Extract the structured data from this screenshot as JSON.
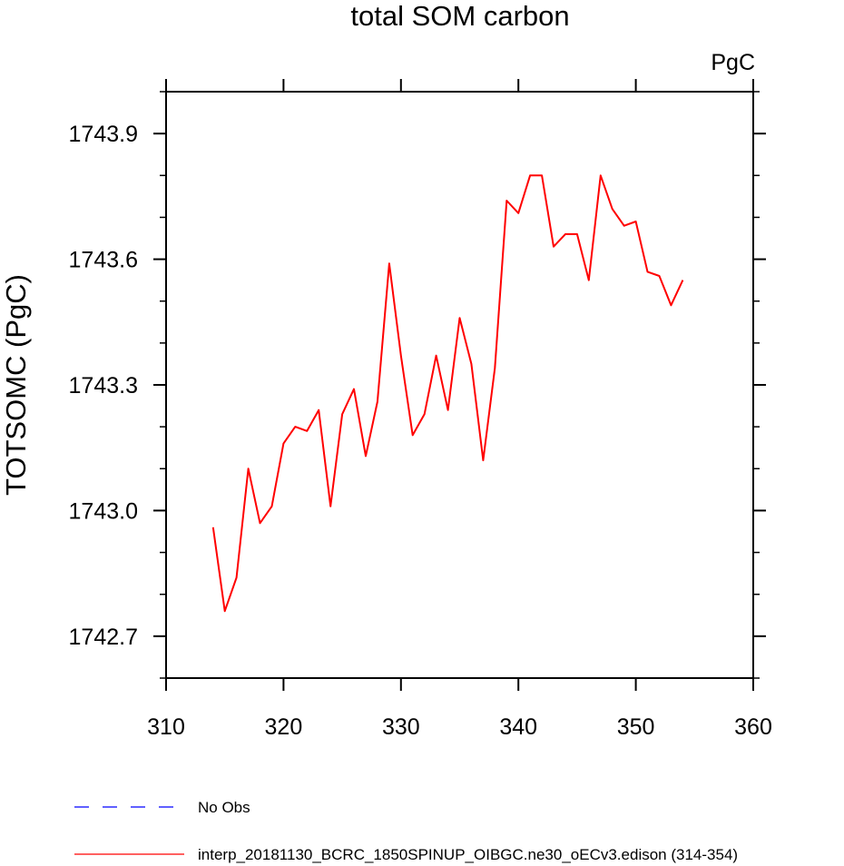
{
  "chart_data": {
    "type": "line",
    "title": "total SOM carbon",
    "units": "PgC",
    "xlabel": "",
    "ylabel": "TOTSOMC  (PgC)",
    "xlim": [
      310,
      360
    ],
    "ylim": [
      1742.6,
      1744.0
    ],
    "x_ticks": [
      310,
      320,
      330,
      340,
      350,
      360
    ],
    "y_ticks": [
      1742.7,
      1743.0,
      1743.3,
      1743.6,
      1743.9
    ],
    "x_tick_labels": [
      "310",
      "320",
      "330",
      "340",
      "350",
      "360"
    ],
    "y_tick_labels": [
      "1742.7",
      "1743.0",
      "1743.3",
      "1743.6",
      "1743.9"
    ],
    "series": [
      {
        "name": "interp_20181130_BCRC_1850SPINUP_OIBGC.ne30_oECv3.edison (314-354)",
        "color": "#ff0000",
        "dash": "solid",
        "x": [
          314,
          315,
          316,
          317,
          318,
          319,
          320,
          321,
          322,
          323,
          324,
          325,
          326,
          327,
          328,
          329,
          330,
          331,
          332,
          333,
          334,
          335,
          336,
          337,
          338,
          339,
          340,
          341,
          342,
          343,
          344,
          345,
          346,
          347,
          348,
          349,
          350,
          351,
          352,
          353,
          354
        ],
        "values": [
          1742.96,
          1742.76,
          1742.84,
          1743.1,
          1742.97,
          1743.01,
          1743.16,
          1743.2,
          1743.19,
          1743.24,
          1743.01,
          1743.23,
          1743.29,
          1743.13,
          1743.26,
          1743.59,
          1743.37,
          1743.18,
          1743.23,
          1743.37,
          1743.24,
          1743.46,
          1743.35,
          1743.12,
          1743.34,
          1743.74,
          1743.71,
          1743.8,
          1743.8,
          1743.63,
          1743.66,
          1743.66,
          1743.55,
          1743.8,
          1743.72,
          1743.68,
          1743.69,
          1743.57,
          1743.56,
          1743.49,
          1743.55
        ]
      }
    ],
    "legend": [
      {
        "label": "No Obs",
        "color": "#0000ff",
        "dash": "dashed"
      },
      {
        "label": "interp_20181130_BCRC_1850SPINUP_OIBGC.ne30_oECv3.edison (314-354)",
        "color": "#ff0000",
        "dash": "solid"
      }
    ],
    "legend_position": "bottom",
    "grid": false
  }
}
